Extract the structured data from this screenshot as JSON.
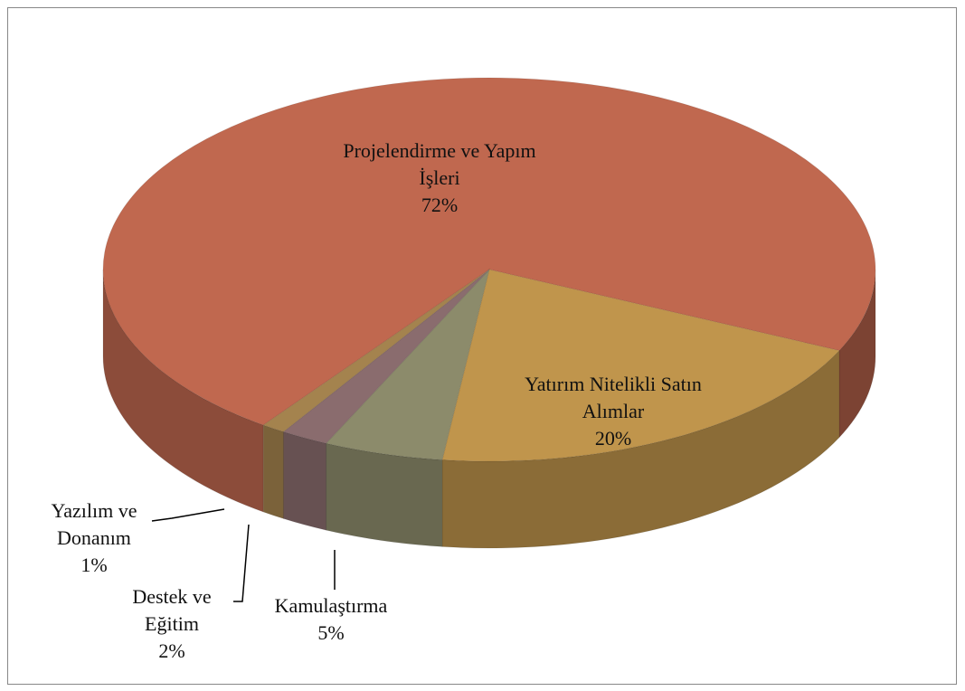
{
  "chart_data": {
    "type": "pie",
    "categories": [
      "Projelendirme ve Yapım İşleri",
      "Yatırım Nitelikli Satın Alımlar",
      "Kamulaştırma",
      "Destek ve Eğitim",
      "Yazılım ve Donanım"
    ],
    "values": [
      72,
      20,
      5,
      2,
      1
    ],
    "value_labels": [
      "72%",
      "20%",
      "5%",
      "2%",
      "1%"
    ],
    "colors": [
      "#c0684f",
      "#c0954c",
      "#8c8b6b",
      "#8a6c6e",
      "#a4834e"
    ],
    "three_d": true
  }
}
